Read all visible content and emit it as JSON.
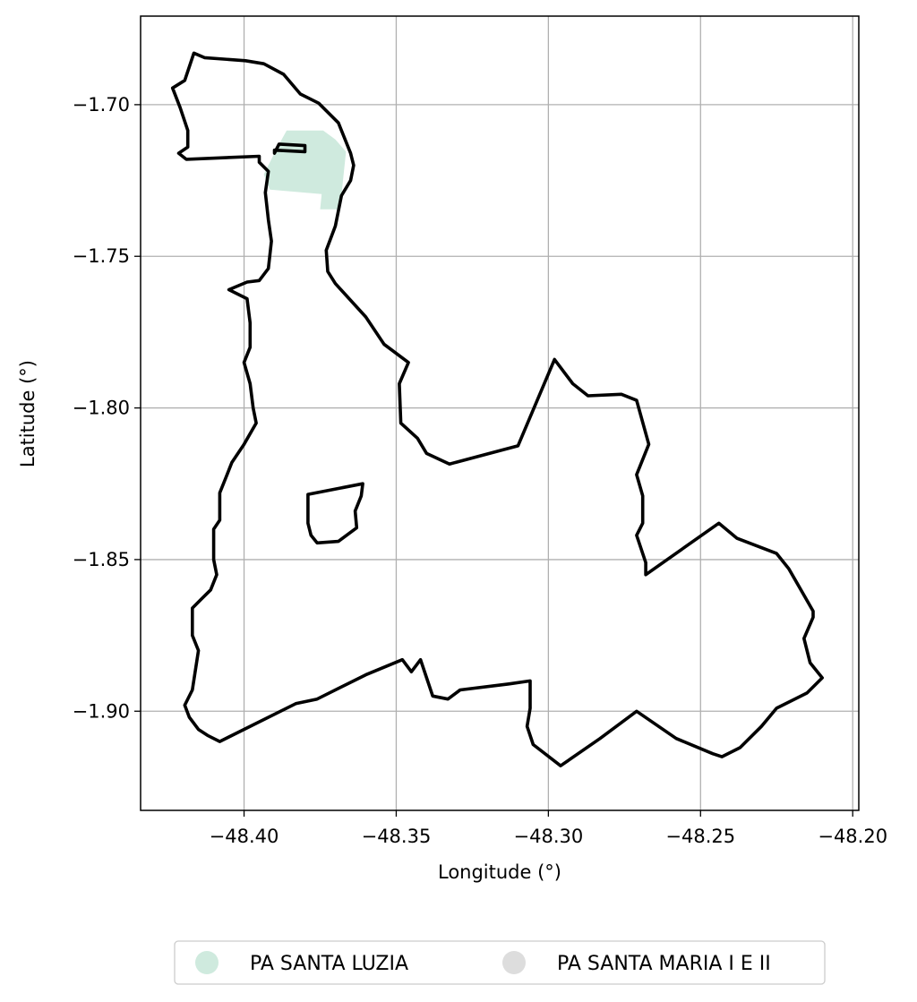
{
  "chart_data": {
    "type": "map",
    "xlabel": "Longitude (°)",
    "ylabel": "Latitude (°)",
    "xlim": [
      -48.434,
      -48.198
    ],
    "ylim": [
      -1.9327,
      -1.6708
    ],
    "xticks": [
      -48.4,
      -48.35,
      -48.3,
      -48.25,
      -48.2
    ],
    "xtick_labels": [
      "−48.40",
      "−48.35",
      "−48.30",
      "−48.25",
      "−48.20"
    ],
    "yticks": [
      -1.7,
      -1.75,
      -1.8,
      -1.85,
      -1.9
    ],
    "ytick_labels": [
      "−1.70",
      "−1.75",
      "−1.80",
      "−1.85",
      "−1.90"
    ],
    "grid": true,
    "legend_placement": "bottom-center",
    "series": [
      {
        "name": "PA SANTA LUZIA",
        "color": "#cfeade",
        "style": "filled",
        "rings": [
          [
            [
              -48.386,
              -1.7085
            ],
            [
              -48.374,
              -1.7085
            ],
            [
              -48.37,
              -1.7115
            ],
            [
              -48.3665,
              -1.7155
            ],
            [
              -48.3685,
              -1.7345
            ],
            [
              -48.375,
              -1.7345
            ],
            [
              -48.3745,
              -1.7295
            ],
            [
              -48.3915,
              -1.728
            ],
            [
              -48.3935,
              -1.723
            ],
            [
              -48.389,
              -1.714
            ]
          ]
        ]
      },
      {
        "name": "PA SANTA MARIA I E II",
        "color": "#dddddd",
        "style": "outline",
        "outline_color": "#000000",
        "rings": [
          [
            [
              -48.4165,
              -1.683
            ],
            [
              -48.413,
              -1.6845
            ],
            [
              -48.3995,
              -1.6855
            ],
            [
              -48.3935,
              -1.6865
            ],
            [
              -48.387,
              -1.69
            ],
            [
              -48.3815,
              -1.6965
            ],
            [
              -48.3755,
              -1.6995
            ],
            [
              -48.369,
              -1.706
            ],
            [
              -48.365,
              -1.716
            ],
            [
              -48.364,
              -1.72
            ],
            [
              -48.365,
              -1.725
            ],
            [
              -48.368,
              -1.73
            ],
            [
              -48.37,
              -1.74
            ],
            [
              -48.373,
              -1.748
            ],
            [
              -48.3725,
              -1.755
            ],
            [
              -48.37,
              -1.759
            ],
            [
              -48.36,
              -1.77
            ],
            [
              -48.354,
              -1.779
            ],
            [
              -48.346,
              -1.785
            ],
            [
              -48.349,
              -1.792
            ],
            [
              -48.3485,
              -1.805
            ],
            [
              -48.343,
              -1.81
            ],
            [
              -48.34,
              -1.815
            ],
            [
              -48.3325,
              -1.8185
            ],
            [
              -48.31,
              -1.8125
            ],
            [
              -48.298,
              -1.784
            ],
            [
              -48.292,
              -1.792
            ],
            [
              -48.287,
              -1.796
            ],
            [
              -48.276,
              -1.7955
            ],
            [
              -48.271,
              -1.7975
            ],
            [
              -48.267,
              -1.812
            ],
            [
              -48.271,
              -1.822
            ],
            [
              -48.269,
              -1.829
            ],
            [
              -48.269,
              -1.838
            ],
            [
              -48.271,
              -1.842
            ],
            [
              -48.268,
              -1.851
            ],
            [
              -48.268,
              -1.855
            ],
            [
              -48.244,
              -1.838
            ],
            [
              -48.238,
              -1.843
            ],
            [
              -48.225,
              -1.848
            ],
            [
              -48.221,
              -1.853
            ],
            [
              -48.213,
              -1.867
            ],
            [
              -48.213,
              -1.869
            ],
            [
              -48.216,
              -1.876
            ],
            [
              -48.214,
              -1.884
            ],
            [
              -48.21,
              -1.889
            ],
            [
              -48.215,
              -1.894
            ],
            [
              -48.225,
              -1.899
            ],
            [
              -48.23,
              -1.905
            ],
            [
              -48.237,
              -1.912
            ],
            [
              -48.243,
              -1.915
            ],
            [
              -48.246,
              -1.914
            ],
            [
              -48.258,
              -1.909
            ],
            [
              -48.271,
              -1.9
            ],
            [
              -48.283,
              -1.909
            ],
            [
              -48.296,
              -1.918
            ],
            [
              -48.305,
              -1.911
            ],
            [
              -48.307,
              -1.905
            ],
            [
              -48.306,
              -1.899
            ],
            [
              -48.306,
              -1.89
            ],
            [
              -48.313,
              -1.891
            ],
            [
              -48.329,
              -1.893
            ],
            [
              -48.333,
              -1.896
            ],
            [
              -48.338,
              -1.895
            ],
            [
              -48.34,
              -1.889
            ],
            [
              -48.342,
              -1.883
            ],
            [
              -48.345,
              -1.887
            ],
            [
              -48.348,
              -1.883
            ],
            [
              -48.36,
              -1.888
            ],
            [
              -48.376,
              -1.896
            ],
            [
              -48.383,
              -1.8975
            ],
            [
              -48.408,
              -1.91
            ],
            [
              -48.412,
              -1.908
            ],
            [
              -48.415,
              -1.906
            ],
            [
              -48.418,
              -1.902
            ],
            [
              -48.4195,
              -1.898
            ],
            [
              -48.417,
              -1.893
            ],
            [
              -48.415,
              -1.88
            ],
            [
              -48.417,
              -1.875
            ],
            [
              -48.417,
              -1.866
            ],
            [
              -48.414,
              -1.863
            ],
            [
              -48.411,
              -1.86
            ],
            [
              -48.409,
              -1.855
            ],
            [
              -48.41,
              -1.85
            ],
            [
              -48.41,
              -1.84
            ],
            [
              -48.408,
              -1.837
            ],
            [
              -48.408,
              -1.828
            ],
            [
              -48.406,
              -1.823
            ],
            [
              -48.404,
              -1.818
            ],
            [
              -48.4,
              -1.812
            ],
            [
              -48.396,
              -1.805
            ],
            [
              -48.397,
              -1.8
            ],
            [
              -48.398,
              -1.792
            ],
            [
              -48.4,
              -1.785
            ],
            [
              -48.398,
              -1.78
            ],
            [
              -48.398,
              -1.772
            ],
            [
              -48.399,
              -1.764
            ],
            [
              -48.405,
              -1.761
            ],
            [
              -48.399,
              -1.7585
            ],
            [
              -48.395,
              -1.758
            ],
            [
              -48.392,
              -1.754
            ],
            [
              -48.391,
              -1.745
            ],
            [
              -48.392,
              -1.738
            ],
            [
              -48.393,
              -1.729
            ],
            [
              -48.392,
              -1.722
            ],
            [
              -48.395,
              -1.719
            ],
            [
              -48.395,
              -1.717
            ],
            [
              -48.419,
              -1.718
            ],
            [
              -48.4215,
              -1.716
            ],
            [
              -48.4185,
              -1.714
            ],
            [
              -48.4185,
              -1.7085
            ],
            [
              -48.421,
              -1.701
            ],
            [
              -48.4235,
              -1.6945
            ],
            [
              -48.4195,
              -1.692
            ]
          ],
          [
            [
              -48.39,
              -1.716
            ],
            [
              -48.39,
              -1.715
            ],
            [
              -48.38,
              -1.7155
            ],
            [
              -48.38,
              -1.7135
            ],
            [
              -48.3885,
              -1.713
            ]
          ],
          [
            [
              -48.379,
              -1.8285
            ],
            [
              -48.361,
              -1.825
            ],
            [
              -48.3615,
              -1.829
            ],
            [
              -48.3635,
              -1.834
            ],
            [
              -48.363,
              -1.8395
            ],
            [
              -48.369,
              -1.844
            ],
            [
              -48.376,
              -1.8445
            ],
            [
              -48.378,
              -1.842
            ],
            [
              -48.379,
              -1.838
            ],
            [
              -48.379,
              -1.833
            ]
          ]
        ]
      }
    ]
  }
}
